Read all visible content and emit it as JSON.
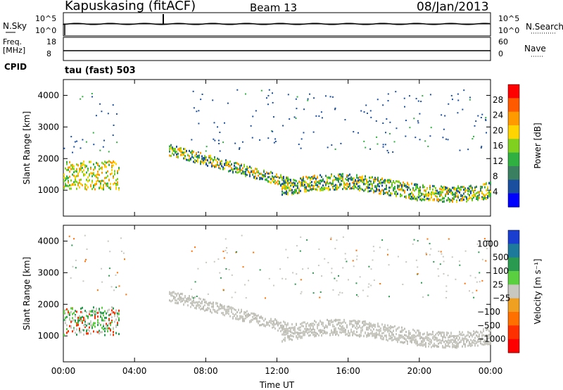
{
  "header": {
    "station": "Kapuskasing (fitACF)",
    "beam": "Beam 13",
    "date": "08/Jan/2013"
  },
  "top_panels": {
    "nsky_label": "N.Sky",
    "nsearch_label": "N.Search",
    "noise_left_ticks": [
      "10^5",
      "10^0"
    ],
    "noise_right_ticks": [
      "10^5",
      "10^0"
    ],
    "freq_label": "Freq.",
    "freq_unit": "[MHz]",
    "freq_ticks": [
      "18",
      "8"
    ],
    "nave_label": "Nave",
    "nave_ticks": [
      "60",
      "0"
    ],
    "cpid_label": "CPID",
    "cpid_value": "tau (fast) 503"
  },
  "chart_data": [
    {
      "type": "heatmap",
      "name": "power",
      "ylabel": "Slant Range [km]",
      "colorbar_label": "Power [dB]",
      "colorbar_ticks": [
        "28",
        "24",
        "20",
        "16",
        "12",
        "8",
        "4"
      ],
      "colorbar_colors": [
        "#ff0000",
        "#ff5a00",
        "#ff9a00",
        "#ffd400",
        "#80d020",
        "#2fb040",
        "#3a8060",
        "#1a4fa0",
        "#0000ff"
      ],
      "y_ticks": [
        "4000",
        "3000",
        "2000",
        "1000"
      ],
      "ylim": [
        180,
        4500
      ],
      "x_ticks": [
        "00:00",
        "04:00",
        "08:00",
        "12:00",
        "16:00",
        "20:00",
        "00:00"
      ]
    },
    {
      "type": "heatmap",
      "name": "velocity",
      "ylabel": "Slant Range [km]",
      "colorbar_label": "Velocity [m s⁻¹]",
      "colorbar_ticks": [
        "1000",
        "500",
        "100",
        "25",
        "−25",
        "−100",
        "−500",
        "−1000"
      ],
      "colorbar_colors": [
        "#1a3fd0",
        "#1e7a9a",
        "#2a9a50",
        "#5ad040",
        "#c8c8c0",
        "#f0a020",
        "#ff7000",
        "#ff3000",
        "#ff0000"
      ],
      "y_ticks": [
        "4000",
        "3000",
        "2000",
        "1000"
      ],
      "ylim": [
        180,
        4500
      ],
      "x_ticks": [
        "00:00",
        "04:00",
        "08:00",
        "12:00",
        "16:00",
        "20:00",
        "00:00"
      ],
      "xlabel": "Time UT"
    }
  ]
}
